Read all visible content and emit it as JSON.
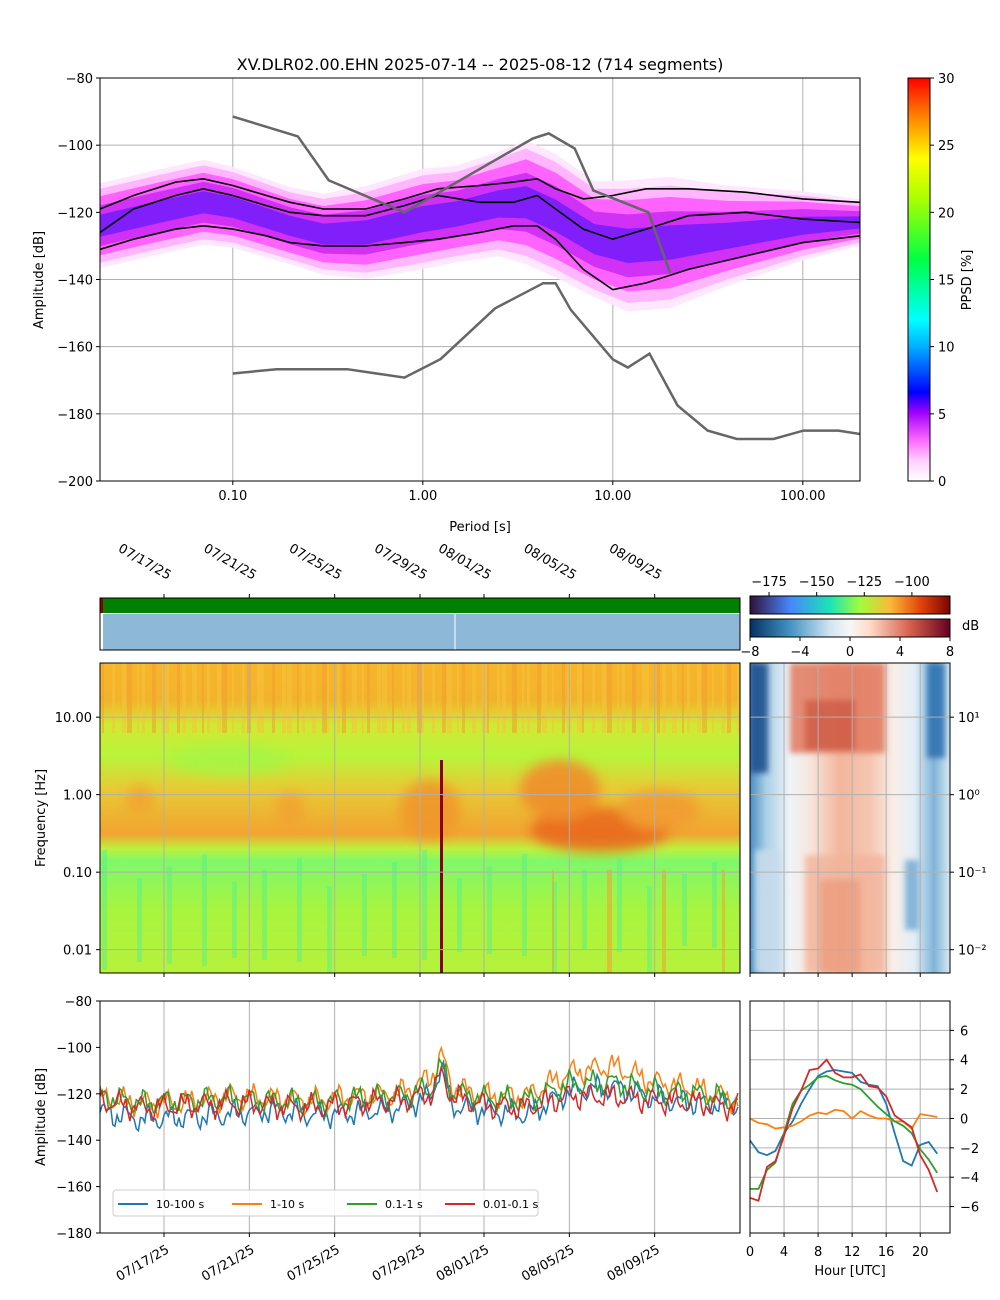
{
  "figure": {
    "title": "XV.DLR02.00.EHN   2025-07-14 -- 2025-08-12  (714 segments)"
  },
  "chart_data": [
    {
      "id": "ppsd",
      "type": "heatmap",
      "xlabel": "Period [s]",
      "ylabel": "Amplitude [dB]",
      "x_scale": "log",
      "xlim": [
        0.02,
        200
      ],
      "ylim": [
        -200,
        -80
      ],
      "x_ticks": [
        {
          "v": 0.1,
          "label": "0.10"
        },
        {
          "v": 1,
          "label": "1.00"
        },
        {
          "v": 10,
          "label": "10.00"
        },
        {
          "v": 100,
          "label": "100.00"
        }
      ],
      "y_ticks": [
        -200,
        -180,
        -160,
        -140,
        -120,
        -100,
        -80
      ],
      "colorbar": {
        "label": "PPSD [%]",
        "range": [
          0,
          30
        ],
        "ticks": [
          0,
          5,
          10,
          15,
          20,
          25,
          30
        ]
      },
      "density_band": {
        "x": [
          0.02,
          0.04,
          0.07,
          0.1,
          0.2,
          0.3,
          0.5,
          1,
          1.5,
          2.5,
          3.5,
          5,
          8,
          12,
          20,
          40,
          100,
          200
        ],
        "lower": [
          -135,
          -131,
          -128,
          -129,
          -134,
          -137,
          -138,
          -135,
          -133,
          -131,
          -133,
          -137,
          -143,
          -147,
          -146,
          -140,
          -133,
          -129
        ],
        "upper": [
          -113,
          -109,
          -106,
          -108,
          -114,
          -116,
          -114,
          -109,
          -108,
          -104,
          -101,
          -105,
          -113,
          -113,
          -112,
          -114,
          -115,
          -117
        ]
      },
      "series": [
        {
          "x": [
            0.02,
            0.03,
            0.05,
            0.07,
            0.1,
            0.15,
            0.2,
            0.3,
            0.5,
            0.8,
            1.2,
            2,
            3,
            4,
            5,
            7,
            10,
            15,
            25,
            50,
            100,
            200
          ],
          "y": [
            -119,
            -115,
            -111,
            -110,
            -112,
            -115,
            -117,
            -119,
            -119,
            -116,
            -113,
            -112,
            -111,
            -110,
            -113,
            -116,
            -115,
            -113,
            -113,
            -114,
            -116,
            -117
          ]
        },
        {
          "x": [
            0.02,
            0.03,
            0.05,
            0.07,
            0.1,
            0.15,
            0.2,
            0.3,
            0.5,
            0.8,
            1.2,
            2,
            3,
            4,
            5,
            7,
            10,
            15,
            25,
            50,
            100,
            200
          ],
          "y": [
            -126,
            -119,
            -115,
            -113,
            -115,
            -118,
            -120,
            -121,
            -121,
            -118,
            -115,
            -117,
            -117,
            -115,
            -119,
            -125,
            -128,
            -125,
            -121,
            -120,
            -122,
            -123
          ]
        },
        {
          "x": [
            0.02,
            0.03,
            0.05,
            0.07,
            0.1,
            0.15,
            0.2,
            0.3,
            0.5,
            0.8,
            1.2,
            2,
            3,
            4,
            5,
            7,
            10,
            15,
            25,
            50,
            100,
            200
          ],
          "y": [
            -131,
            -128,
            -125,
            -124,
            -125,
            -127,
            -129,
            -130,
            -130,
            -129,
            -128,
            -126,
            -124,
            -124,
            -128,
            -137,
            -143,
            -141,
            -137,
            -133,
            -129,
            -127
          ]
        }
      ],
      "nlnm": {
        "x": [
          0.1,
          0.17,
          0.4,
          0.8,
          1.24,
          2.4,
          4.3,
          5,
          6,
          10,
          12,
          15.6,
          21.9,
          31.6,
          45,
          70,
          101,
          154,
          200
        ],
        "y": [
          -168,
          -166.7,
          -166.7,
          -169.2,
          -163.7,
          -148.6,
          -141.1,
          -141.1,
          -149,
          -163.8,
          -166.2,
          -162.1,
          -177.5,
          -185,
          -187.5,
          -187.5,
          -185,
          -185,
          -186
        ]
      },
      "nhnm": {
        "x": [
          0.1,
          0.22,
          0.32,
          0.8,
          3.8,
          4.6,
          6.3,
          7.9,
          15.4,
          20
        ],
        "y": [
          -91.5,
          -97.4,
          -110.5,
          -120,
          -98,
          -96.5,
          -101,
          -113.5,
          -120,
          -138
        ]
      }
    },
    {
      "id": "availability",
      "type": "bar",
      "x_tick_labels": [
        "07/17/25",
        "07/21/25",
        "07/25/25",
        "07/29/25",
        "08/01/25",
        "08/05/25",
        "08/09/25"
      ],
      "x_tick_days": [
        3,
        7,
        11,
        15,
        18,
        22,
        26
      ],
      "xlim_days": [
        0,
        30
      ],
      "top_bar_color": "#008000",
      "bottom_bar_color": "#8db8d8"
    },
    {
      "id": "spectrogram",
      "type": "heatmap",
      "ylabel": "Frequency [Hz]",
      "y_scale": "log",
      "ylim": [
        0.005,
        50
      ],
      "y_ticks": [
        {
          "v": 0.01,
          "label": "0.01"
        },
        {
          "v": 0.1,
          "label": "0.10"
        },
        {
          "v": 1,
          "label": "1.00"
        },
        {
          "v": 10,
          "label": "10.00"
        }
      ],
      "colorbar": {
        "range": [
          -185,
          -80
        ],
        "ticks": [
          -175,
          -150,
          -125,
          -100
        ]
      }
    },
    {
      "id": "diurnal_spectrogram",
      "type": "heatmap",
      "y_scale": "log",
      "y_ticks": [
        {
          "v": 0.01,
          "label": "10⁻²"
        },
        {
          "v": 0.1,
          "label": "10⁻¹"
        },
        {
          "v": 1,
          "label": "10⁰"
        },
        {
          "v": 10,
          "label": "10¹"
        }
      ],
      "colorbar": {
        "label": "dB",
        "range": [
          -8,
          8
        ],
        "ticks": [
          -8,
          -4,
          0,
          4,
          8
        ]
      }
    },
    {
      "id": "band_timeseries",
      "type": "line",
      "ylabel": "Amplitude [dB]",
      "ylim": [
        -180,
        -80
      ],
      "y_ticks": [
        -180,
        -160,
        -140,
        -120,
        -100,
        -80
      ],
      "x_tick_labels": [
        "07/17/25",
        "07/21/25",
        "07/25/25",
        "07/29/25",
        "08/01/25",
        "08/05/25",
        "08/09/25"
      ],
      "x_tick_days": [
        3,
        7,
        11,
        15,
        18,
        22,
        26
      ],
      "xlim_days": [
        0,
        30
      ],
      "series": [
        {
          "name": "10-100 s",
          "color": "#1f77b4",
          "days": [
            0,
            2,
            4,
            6,
            8,
            10,
            12,
            14,
            15.5,
            16,
            16.5,
            18,
            20,
            22,
            24,
            26,
            28,
            30
          ],
          "values": [
            -128,
            -131,
            -130,
            -129,
            -127,
            -129,
            -128,
            -126,
            -121,
            -108,
            -125,
            -127,
            -129,
            -119,
            -117,
            -122,
            -124,
            -125
          ]
        },
        {
          "name": "1-10 s",
          "color": "#ff7f0e",
          "days": [
            0,
            2,
            4,
            6,
            8,
            10,
            12,
            14,
            15.5,
            16,
            16.5,
            18,
            20,
            22,
            24,
            26,
            28,
            30
          ],
          "values": [
            -122,
            -124,
            -124,
            -121,
            -122,
            -123,
            -121,
            -120,
            -113,
            -103,
            -117,
            -121,
            -121,
            -111,
            -108,
            -115,
            -118,
            -123
          ]
        },
        {
          "name": "0.1-1 s",
          "color": "#2ca02c",
          "days": [
            0,
            2,
            4,
            6,
            8,
            10,
            12,
            14,
            15.5,
            16,
            16.5,
            18,
            20,
            22,
            24,
            26,
            28,
            30
          ],
          "values": [
            -121,
            -124,
            -123,
            -122,
            -123,
            -124,
            -122,
            -121,
            -118,
            -108,
            -119,
            -122,
            -123,
            -116,
            -115,
            -119,
            -120,
            -123
          ]
        },
        {
          "name": "0.01-0.1 s",
          "color": "#d62728",
          "days": [
            0,
            2,
            4,
            6,
            8,
            10,
            12,
            14,
            15.5,
            16,
            16.5,
            18,
            20,
            22,
            24,
            26,
            28,
            30
          ],
          "values": [
            -123,
            -126,
            -125,
            -124,
            -125,
            -126,
            -124,
            -123,
            -120,
            -112,
            -121,
            -125,
            -126,
            -121,
            -121,
            -123,
            -124,
            -126
          ]
        }
      ]
    },
    {
      "id": "diurnal",
      "type": "line",
      "xlabel": "Hour [UTC]",
      "xlim": [
        0,
        23.5
      ],
      "ylim": [
        -7.8,
        8
      ],
      "x_ticks": [
        0,
        4,
        8,
        12,
        16,
        20
      ],
      "y_ticks": [
        -6,
        -4,
        -2,
        0,
        2,
        4,
        6
      ],
      "series": [
        {
          "name": "10-100 s",
          "color": "#1f77b4",
          "x": [
            0,
            1,
            2,
            3,
            4,
            5,
            6,
            7,
            8,
            9,
            10,
            11,
            12,
            13,
            14,
            15,
            16,
            17,
            18,
            19,
            20,
            21,
            22
          ],
          "y": [
            -1.5,
            -2.3,
            -2.5,
            -2.2,
            -1.0,
            -0.2,
            1.0,
            2.0,
            2.9,
            3.2,
            3.3,
            3.2,
            3.1,
            2.5,
            2.3,
            2.2,
            1.0,
            -1.0,
            -2.9,
            -3.2,
            -1.8,
            -1.6,
            -2.4
          ]
        },
        {
          "name": "1-10 s",
          "color": "#ff7f0e",
          "x": [
            0,
            1,
            2,
            3,
            4,
            5,
            6,
            7,
            8,
            9,
            10,
            11,
            12,
            13,
            14,
            15,
            16,
            17,
            18,
            19,
            20,
            21,
            22
          ],
          "y": [
            0.0,
            -0.3,
            -0.4,
            -0.7,
            -0.6,
            -0.5,
            -0.2,
            0.2,
            0.4,
            0.3,
            0.6,
            0.5,
            0.0,
            0.5,
            0.2,
            0.0,
            0.0,
            -0.2,
            -0.2,
            -0.7,
            0.3,
            0.2,
            0.1
          ]
        },
        {
          "name": "0.1-1 s",
          "color": "#2ca02c",
          "x": [
            0,
            1,
            2,
            3,
            4,
            5,
            6,
            7,
            8,
            9,
            10,
            11,
            12,
            13,
            14,
            15,
            16,
            17,
            18,
            19,
            20,
            21,
            22
          ],
          "y": [
            -4.8,
            -4.8,
            -3.5,
            -3.0,
            -1.0,
            1.0,
            1.9,
            2.3,
            2.8,
            2.9,
            2.6,
            2.4,
            2.3,
            2.0,
            1.4,
            0.8,
            0.3,
            -0.2,
            -0.5,
            -1.0,
            -2.1,
            -2.8,
            -3.7
          ]
        },
        {
          "name": "0.01-0.1 s",
          "color": "#d62728",
          "x": [
            0,
            1,
            2,
            3,
            4,
            5,
            6,
            7,
            8,
            9,
            10,
            11,
            12,
            13,
            14,
            15,
            16,
            17,
            18,
            19,
            20,
            21,
            22
          ],
          "y": [
            -5.4,
            -5.6,
            -3.3,
            -2.9,
            -1.2,
            0.7,
            1.9,
            3.3,
            3.4,
            4.0,
            3.1,
            2.8,
            2.8,
            3.0,
            2.2,
            2.1,
            1.5,
            0.2,
            -0.2,
            -0.6,
            -2.5,
            -3.5,
            -5.0
          ]
        }
      ]
    }
  ]
}
